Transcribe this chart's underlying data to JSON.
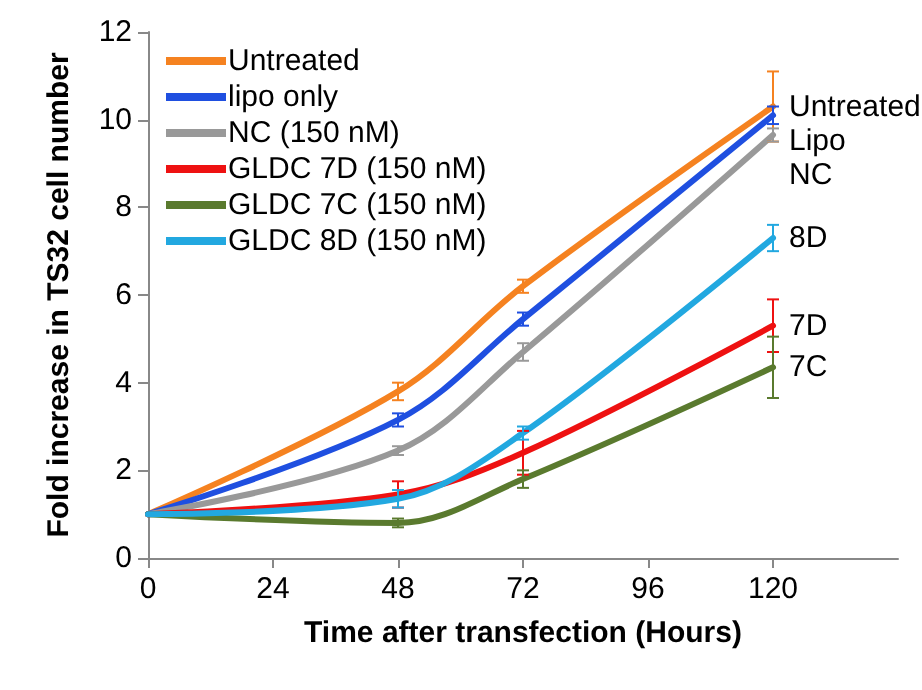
{
  "chart_data": {
    "type": "line",
    "xlabel": "Time after transfection (Hours)",
    "ylabel": "Fold increase in TS32 cell number",
    "x": [
      0,
      48,
      72,
      120
    ],
    "xlim": [
      0,
      144
    ],
    "xticks": [
      0,
      24,
      48,
      72,
      96,
      120
    ],
    "ylim": [
      0,
      12
    ],
    "yticks": [
      0,
      2,
      4,
      6,
      8,
      10,
      12
    ],
    "grid": false,
    "legend": "top left",
    "marker": "none",
    "line_style": "solid",
    "series": [
      {
        "name": "Untreated",
        "color": "#f58220",
        "values": [
          1,
          3.8,
          6.2,
          10.3
        ],
        "errors": [
          null,
          0.2,
          0.15,
          0.8
        ]
      },
      {
        "name": "lipo only",
        "color": "#1f4fe0",
        "values": [
          1,
          3.15,
          5.45,
          10.1
        ],
        "errors": [
          null,
          0.15,
          0.15,
          0.2
        ]
      },
      {
        "name": "NC (150 nM)",
        "color": "#999999",
        "values": [
          1,
          2.45,
          4.7,
          9.65
        ],
        "errors": [
          null,
          0.1,
          0.2,
          0.15
        ]
      },
      {
        "name": "GLDC 7D (150 nM)",
        "color": "#ee1111",
        "values": [
          1,
          1.45,
          2.4,
          5.3
        ],
        "errors": [
          null,
          0.3,
          0.5,
          0.6
        ]
      },
      {
        "name": "GLDC 7C (150 nM)",
        "color": "#5a7a2e",
        "values": [
          1,
          0.8,
          1.8,
          4.35
        ],
        "errors": [
          null,
          0.1,
          0.2,
          0.7
        ]
      },
      {
        "name": "GLDC 8D (150 nM)",
        "color": "#22a8e0",
        "values": [
          1,
          1.35,
          2.85,
          7.3
        ],
        "errors": [
          null,
          0.2,
          0.15,
          0.3
        ]
      }
    ],
    "annotations": [
      "Untreated",
      "Lipo",
      "NC",
      "7D",
      "7C",
      "8D"
    ]
  }
}
